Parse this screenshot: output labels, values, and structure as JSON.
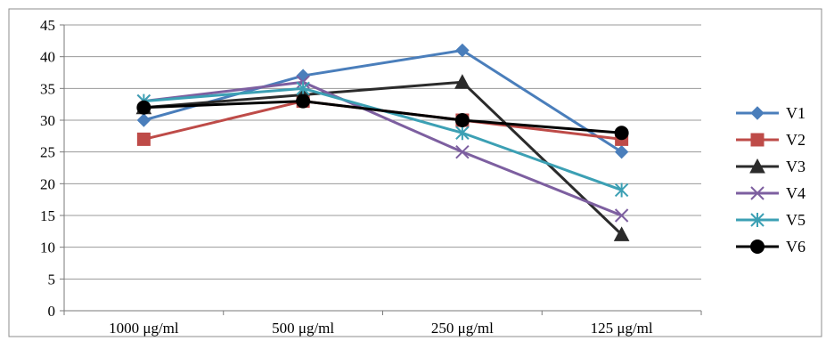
{
  "chart_data": {
    "type": "line",
    "title": "",
    "xlabel": "",
    "ylabel": "",
    "categories": [
      "1000 μg/ml",
      "500 μg/ml",
      "250 μg/ml",
      "125 μg/ml"
    ],
    "ylim": [
      0,
      45
    ],
    "yticks": [
      0,
      5,
      10,
      15,
      20,
      25,
      30,
      35,
      40,
      45
    ],
    "grid": "horizontal",
    "legend_position": "right",
    "series": [
      {
        "name": "V1",
        "values": [
          30,
          37,
          41,
          25
        ],
        "color": "#4a7ebb",
        "marker": "diamond"
      },
      {
        "name": "V2",
        "values": [
          27,
          33,
          30,
          27
        ],
        "color": "#be4b48",
        "marker": "square"
      },
      {
        "name": "V3",
        "values": [
          32,
          34,
          36,
          12
        ],
        "color": "#2b2b2b",
        "marker": "triangle"
      },
      {
        "name": "V4",
        "values": [
          33,
          36,
          25,
          15
        ],
        "color": "#7d5fa0",
        "marker": "x"
      },
      {
        "name": "V5",
        "values": [
          33,
          35,
          28,
          19
        ],
        "color": "#3ca0b4",
        "marker": "star"
      },
      {
        "name": "V6",
        "values": [
          32,
          33,
          30,
          28
        ],
        "color": "#000000",
        "marker": "circle"
      }
    ]
  }
}
